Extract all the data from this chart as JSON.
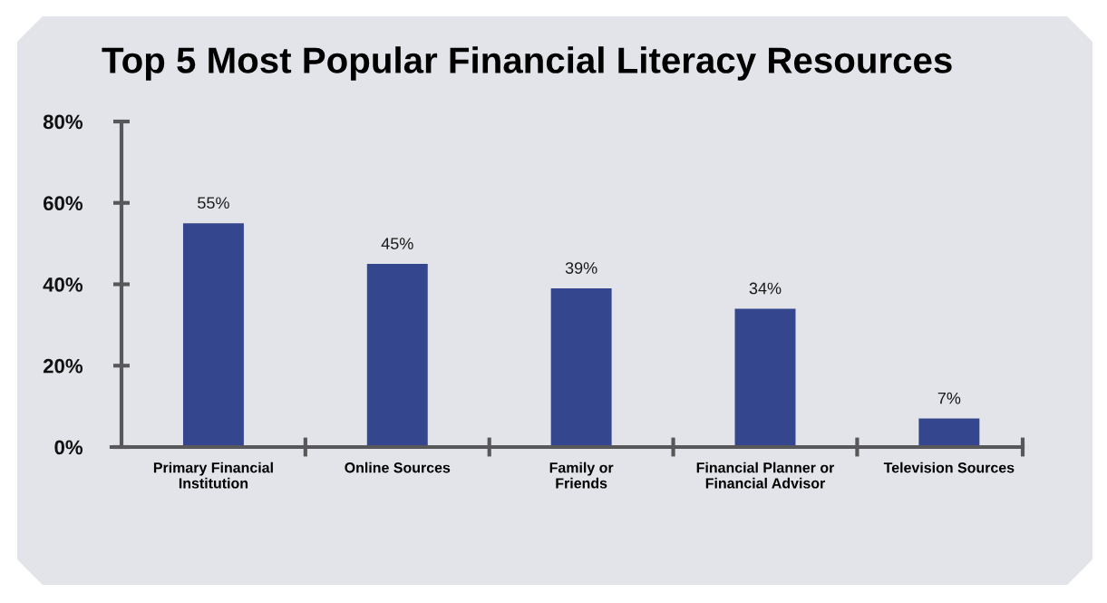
{
  "chart_data": {
    "type": "bar",
    "title": "Top 5 Most Popular Financial Literacy Resources",
    "categories": [
      "Primary Financial\nInstitution",
      "Online Sources",
      "Family or\nFriends",
      "Financial Planner or\nFinancial Advisor",
      "Television Sources"
    ],
    "values": [
      55,
      45,
      39,
      34,
      7
    ],
    "color": "#34468e",
    "value_labels": [
      "55%",
      "45%",
      "39%",
      "34%",
      "7%"
    ],
    "ylim": [
      0,
      80
    ],
    "yticks": [
      {
        "value": 0,
        "label": "0%"
      },
      {
        "value": 20,
        "label": "20%"
      },
      {
        "value": 40,
        "label": "40%"
      },
      {
        "value": 60,
        "label": "60%"
      },
      {
        "value": 80,
        "label": "80%"
      }
    ]
  }
}
